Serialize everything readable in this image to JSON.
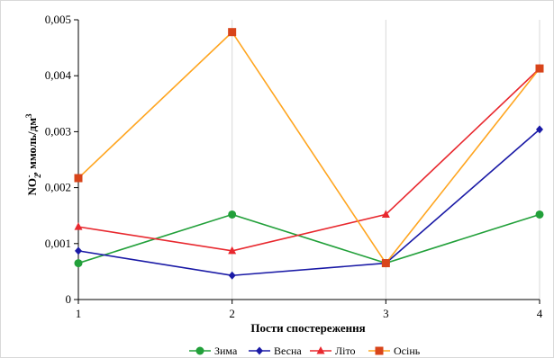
{
  "chart_data": {
    "type": "line",
    "xlabel": "Пости спостереження",
    "ylabel_main": "NO",
    "ylabel_sub": "2",
    "ylabel_sup": "-",
    "ylabel_rest": ", ммоль/дм",
    "ylabel_unit_sup": "3",
    "categories": [
      "1",
      "2",
      "3",
      "4"
    ],
    "ylim": [
      0,
      0.005
    ],
    "yticks": [
      0,
      0.001,
      0.002,
      0.003,
      0.004,
      0.005
    ],
    "ytick_labels": [
      "0",
      "0,001",
      "0,002",
      "0,003",
      "0,004",
      "0,005"
    ],
    "grid": "vertical",
    "legend_position": "bottom",
    "series": [
      {
        "name": "Зима",
        "color": "#22a03a",
        "marker": "circle",
        "values": [
          0.00065,
          0.00152,
          0.00065,
          0.00152
        ]
      },
      {
        "name": "Весна",
        "color": "#1a1aa6",
        "marker": "diamond",
        "values": [
          0.00087,
          0.00043,
          0.00065,
          0.00304
        ]
      },
      {
        "name": "Літо",
        "color": "#e8282e",
        "marker": "triangle",
        "values": [
          0.0013,
          0.00087,
          0.00152,
          0.00413
        ]
      },
      {
        "name": "Осінь",
        "color": "#ffa51f",
        "marker_color": "#d8441a",
        "marker": "square",
        "values": [
          0.00217,
          0.00478,
          0.00065,
          0.00413
        ]
      }
    ]
  }
}
